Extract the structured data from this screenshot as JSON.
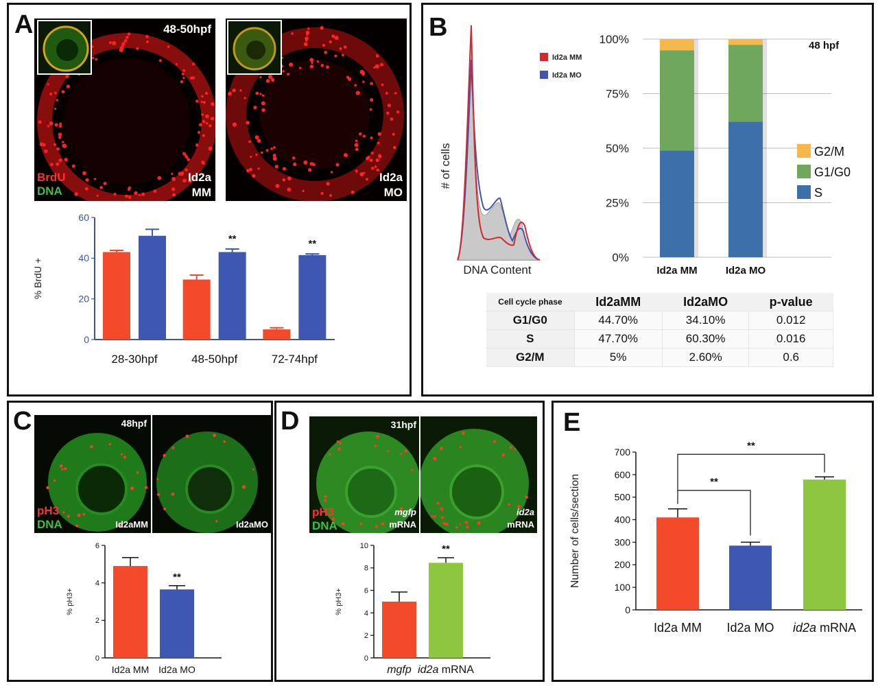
{
  "panels": {
    "A": {
      "label": "A",
      "time": "48-50hpf",
      "stain1": "BrdU",
      "stain2": "DNA",
      "left_tag_1": "Id2a",
      "left_tag_2": "MM",
      "right_tag_1": "Id2a",
      "right_tag_2": "MO"
    },
    "B": {
      "label": "B",
      "timepoint": "48 hpf"
    },
    "C": {
      "label": "C",
      "time": "48hpf",
      "stain1": "pH3",
      "stain2": "DNA",
      "left_tag": "Id2aMM",
      "right_tag": "Id2aMO"
    },
    "D": {
      "label": "D",
      "time": "31hpf",
      "stain1": "pH3",
      "stain2": "DNA",
      "left_tag_1": "mgfp",
      "left_tag_2": "mRNA",
      "right_tag_1": "id2a",
      "right_tag_2": "mRNA"
    },
    "E": {
      "label": "E"
    }
  },
  "histogram": {
    "ylabel": "# of cells",
    "xlabel": "DNA Content",
    "legend": [
      {
        "name": "Id2a MM",
        "color": "#d8262c"
      },
      {
        "name": "Id2a MO",
        "color": "#3e55b2"
      }
    ]
  },
  "table": {
    "headers": [
      "Cell cycle phase",
      "Id2aMM",
      "Id2aMO",
      "p-value"
    ],
    "rows": [
      [
        "G1/G0",
        "44.70%",
        "34.10%",
        "0.012"
      ],
      [
        "S",
        "47.70%",
        "60.30%",
        "0.016"
      ],
      [
        "G2/M",
        "5%",
        "2.60%",
        "0.6"
      ]
    ]
  },
  "colors": {
    "red": "#f44a2c",
    "blue": "#3e57b0",
    "green": "#8dc63f",
    "axis_blue": "#3952a5",
    "stack_S": "#3d6fa8",
    "stack_G1": "#6fa85c",
    "stack_G2": "#f5b84a"
  },
  "chart_data": [
    {
      "id": "A",
      "type": "bar",
      "categories": [
        "28-30hpf",
        "48-50hpf",
        "72-74hpf"
      ],
      "series": [
        {
          "values": [
            43,
            29.5,
            5
          ],
          "errors": [
            0.8,
            2.2,
            0.8
          ]
        },
        {
          "values": [
            51,
            43,
            41.5
          ],
          "errors": [
            3.2,
            1.5,
            0.6
          ]
        }
      ],
      "significance": [
        "",
        "**",
        "**"
      ],
      "ylabel": "% BrdU +",
      "ylim": [
        0,
        60
      ],
      "yticks": [
        0,
        20,
        40,
        60
      ]
    },
    {
      "id": "B",
      "type": "bar",
      "stacked": true,
      "categories": [
        "Id2a MM",
        "Id2a MO"
      ],
      "series": [
        {
          "name": "S",
          "values": [
            47.7,
            60.3
          ]
        },
        {
          "name": "G1/G0",
          "values": [
            44.7,
            34.1
          ]
        },
        {
          "name": "G2/M",
          "values": [
            5,
            2.6
          ]
        }
      ],
      "ylim": [
        0,
        100
      ],
      "yticks": [
        "0%",
        "25%",
        "50%",
        "75%",
        "100%"
      ]
    },
    {
      "id": "C",
      "type": "bar",
      "categories": [
        "Id2a MM",
        "Id2a MO"
      ],
      "values": [
        4.9,
        3.65
      ],
      "errors": [
        0.45,
        0.2
      ],
      "significance": [
        "",
        "**"
      ],
      "ylabel": "% pH3+",
      "ylim": [
        0,
        6
      ],
      "yticks": [
        0,
        2,
        4,
        6
      ]
    },
    {
      "id": "D",
      "type": "bar",
      "categories": [
        "mgfp",
        "id2a mRNA"
      ],
      "values": [
        5,
        8.45
      ],
      "errors": [
        0.85,
        0.45
      ],
      "significance": [
        "",
        "**"
      ],
      "ylabel": "% pH3+",
      "ylim": [
        0,
        10
      ],
      "yticks": [
        0,
        2,
        4,
        6,
        8,
        10
      ]
    },
    {
      "id": "E",
      "type": "bar",
      "categories": [
        "Id2a MM",
        "Id2a MO",
        "id2a mRNA"
      ],
      "values": [
        410,
        285,
        578
      ],
      "errors": [
        38,
        15,
        12
      ],
      "comparisons": [
        {
          "from": "Id2a MM",
          "to": "Id2a MO",
          "label": "**"
        },
        {
          "from": "Id2a MM",
          "to": "id2a mRNA",
          "label": "**"
        }
      ],
      "ylabel": "Number of cells/section",
      "ylim": [
        0,
        700
      ],
      "yticks": [
        0,
        100,
        200,
        300,
        400,
        500,
        600,
        700
      ]
    }
  ]
}
